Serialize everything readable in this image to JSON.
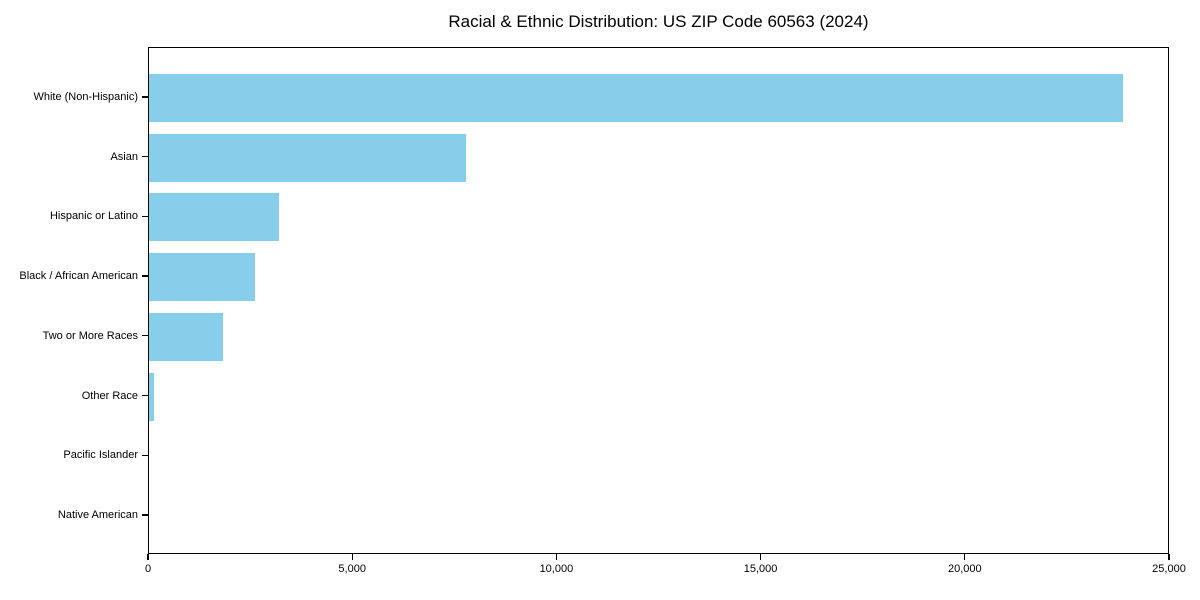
{
  "chart_data": {
    "type": "bar",
    "orientation": "horizontal",
    "title": "Racial & Ethnic Distribution: US ZIP Code 60563 (2024)",
    "categories": [
      "White (Non-Hispanic)",
      "Asian",
      "Hispanic or Latino",
      "Black / African American",
      "Two or More Races",
      "Other Race",
      "Pacific Islander",
      "Native American"
    ],
    "values": [
      23840,
      7750,
      3180,
      2590,
      1820,
      120,
      0,
      0
    ],
    "xlabel": "",
    "ylabel": "",
    "xlim": [
      0,
      25000
    ],
    "xticks": [
      0,
      5000,
      10000,
      15000,
      20000,
      25000
    ],
    "xtick_labels": [
      "0",
      "5,000",
      "10,000",
      "15,000",
      "20,000",
      "25,000"
    ],
    "bar_color": "#87CEEB",
    "axis_color": "#000000",
    "grid": false,
    "legend_position": "none"
  }
}
